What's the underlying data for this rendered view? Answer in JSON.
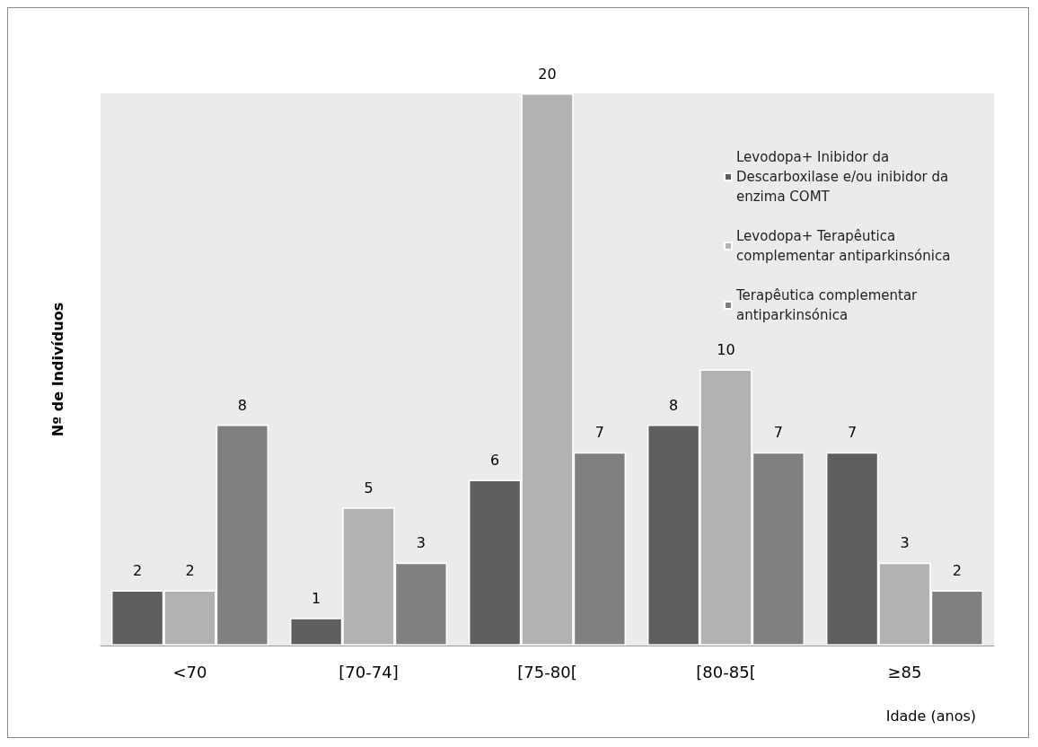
{
  "chart_data": {
    "type": "bar",
    "xlabel": "Idade (anos)",
    "ylabel": "Nº de Indivíduos",
    "categories": [
      "<70",
      "[70-74]",
      "[75-80[",
      "[80-85[",
      "≥85"
    ],
    "series": [
      {
        "name": "Levodopa+ Inibidor da Descarboxilase e/ou inibidor da enzima COMT",
        "color": "#5f5f5f",
        "values": [
          2,
          1,
          6,
          8,
          7
        ]
      },
      {
        "name": "Levodopa+ Terapêutica complementar antiparkinsónica",
        "color": "#b2b2b2",
        "values": [
          2,
          5,
          20,
          10,
          3
        ]
      },
      {
        "name": "Terapêutica complementar antiparkinsónica",
        "color": "#808080",
        "values": [
          8,
          3,
          7,
          7,
          2
        ]
      }
    ],
    "data_labels": true,
    "legend": "top right",
    "grid": false
  }
}
